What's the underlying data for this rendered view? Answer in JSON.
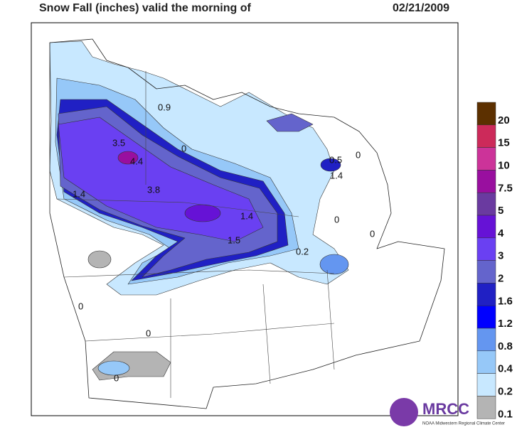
{
  "header": {
    "title": "Snow Fall (inches) valid the morning of",
    "date": "02/21/2009"
  },
  "legend": {
    "items": [
      {
        "label": "20",
        "color": "#5c3000"
      },
      {
        "label": "15",
        "color": "#cc2a5a"
      },
      {
        "label": "10",
        "color": "#cc3399"
      },
      {
        "label": "7.5",
        "color": "#990f9f"
      },
      {
        "label": "5",
        "color": "#6a3aa0"
      },
      {
        "label": "4",
        "color": "#6612d6"
      },
      {
        "label": "3",
        "color": "#6a40f2"
      },
      {
        "label": "2",
        "color": "#6464cc"
      },
      {
        "label": "1.6",
        "color": "#2020c4"
      },
      {
        "label": "1.2",
        "color": "#0000ff"
      },
      {
        "label": "0.8",
        "color": "#6496f0"
      },
      {
        "label": "0.4",
        "color": "#96c8f8"
      },
      {
        "label": "0.2",
        "color": "#c8e8ff"
      },
      {
        "label": "0.1",
        "color": "#b4b4b4"
      }
    ]
  },
  "map_labels": [
    "0.9",
    "3.5",
    "4.4",
    "3.8",
    "1.4",
    "1.5",
    "1.4",
    "0.5",
    "0.2",
    "1.4",
    "0",
    "0",
    "0",
    "0",
    "0",
    "0",
    "0"
  ],
  "logo": {
    "name": "MRCC",
    "caption": "NOAA Midwestern Regional Climate Center"
  }
}
